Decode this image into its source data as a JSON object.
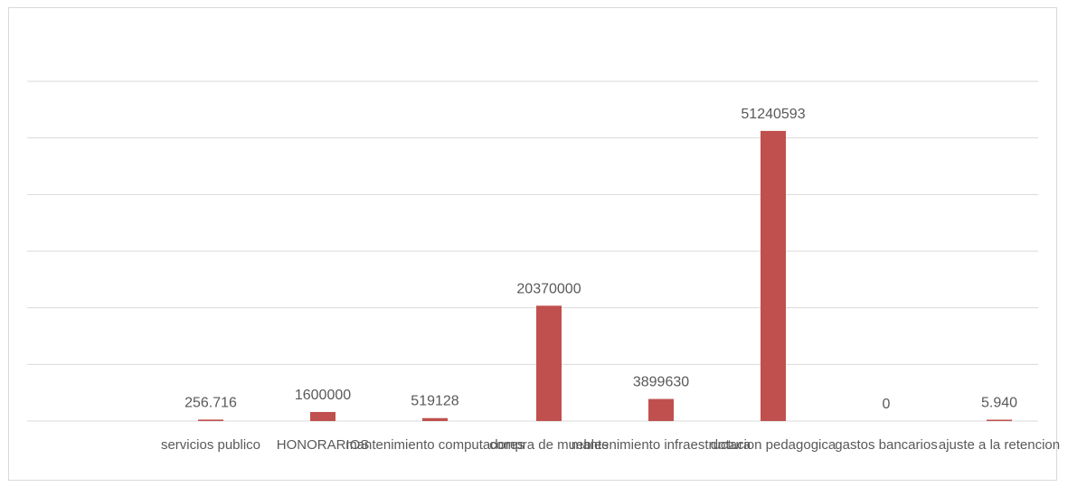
{
  "chart_data": {
    "type": "bar",
    "title": "",
    "xlabel": "",
    "ylabel": "",
    "ylim": [
      0,
      60000000
    ],
    "grid": true,
    "bar_color": "#c0504d",
    "categories": [
      "servicios publico",
      "HONORARIOS",
      "mantenimiento computadores",
      "compra de muebles",
      "mantenimiento infraestructura",
      "dotacion pedagogica",
      "gastos bancarios",
      "ajuste a la retencion"
    ],
    "values": [
      256716,
      1600000,
      519128,
      20370000,
      3899630,
      51240593,
      0,
      5940
    ],
    "data_labels": [
      "256.716",
      "1600000",
      "519128",
      "20370000",
      "3899630",
      "51240593",
      "0",
      "5.940"
    ]
  }
}
